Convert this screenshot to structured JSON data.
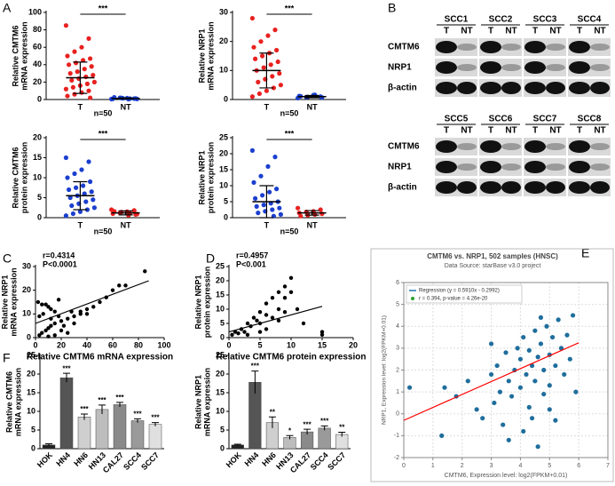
{
  "panel_labels": [
    "A",
    "B",
    "C",
    "D",
    "E",
    "F"
  ],
  "blot": {
    "groups": [
      [
        "SCC1",
        "SCC2",
        "SCC3",
        "SCC4"
      ],
      [
        "SCC5",
        "SCC6",
        "SCC7",
        "SCC8"
      ]
    ],
    "lanes": [
      "T",
      "NT"
    ],
    "rows": [
      "CMTM6",
      "NRP1",
      "β-actin"
    ]
  },
  "chart_data": [
    {
      "type": "dot",
      "ylabel": [
        "Relative CMTM6",
        "mRNA expression"
      ],
      "ylim": [
        0,
        100
      ],
      "yticks": [
        0,
        20,
        40,
        60,
        80,
        100
      ],
      "significance": "***",
      "note": "n=50",
      "series": [
        {
          "name": "T",
          "color": "#e8211f",
          "mean": 25,
          "sd": 18,
          "values": [
            85,
            70,
            60,
            55,
            50,
            47,
            45,
            42,
            40,
            38,
            35,
            32,
            30,
            28,
            26,
            24,
            22,
            20,
            18,
            16,
            14,
            12,
            10,
            8,
            6,
            4,
            2
          ]
        },
        {
          "name": "NT",
          "color": "#1b3fcf",
          "mean": 1.2,
          "sd": 0.6,
          "values": [
            0.5,
            1,
            1.5,
            2,
            0.8,
            1.2,
            0.3,
            1.8,
            2.5,
            0.6,
            1,
            1.4
          ]
        }
      ]
    },
    {
      "type": "dot",
      "ylabel": [
        "Relative NRP1",
        "mRNA expression"
      ],
      "ylim": [
        0,
        30
      ],
      "yticks": [
        0,
        10,
        20,
        30
      ],
      "significance": "***",
      "note": "n=50",
      "series": [
        {
          "name": "T",
          "color": "#e8211f",
          "mean": 10,
          "sd": 6,
          "values": [
            28,
            24,
            22,
            20,
            18,
            17,
            16,
            15,
            14,
            13,
            12,
            11,
            10,
            9,
            8,
            7,
            6,
            5,
            4,
            3,
            2,
            1
          ]
        },
        {
          "name": "NT",
          "color": "#1b3fcf",
          "mean": 1,
          "sd": 0.4,
          "values": [
            0.5,
            1,
            1.5,
            0.8,
            1.2,
            0.7,
            1.6,
            0.9,
            1.1
          ]
        }
      ]
    },
    {
      "type": "dot",
      "ylabel": [
        "Relative CMTM6",
        "protein expression"
      ],
      "ylim": [
        0,
        20
      ],
      "yticks": [
        0,
        5,
        10,
        15,
        20
      ],
      "significance": "***",
      "note": "n=50",
      "series": [
        {
          "name": "T",
          "color": "#1b3fcf",
          "mean": 5.5,
          "sd": 3.5,
          "values": [
            15,
            14,
            12,
            11,
            10,
            9,
            8,
            7.5,
            7,
            6.5,
            6,
            5.5,
            5,
            4.5,
            4,
            3.5,
            3,
            2.5,
            2,
            1.5,
            1,
            0.5
          ]
        },
        {
          "name": "NT",
          "color": "#e8211f",
          "mean": 1.2,
          "sd": 0.5,
          "values": [
            2,
            1.8,
            1.5,
            1.2,
            1,
            0.8,
            0.6,
            1.4,
            1.6,
            0.9,
            1.1
          ]
        }
      ]
    },
    {
      "type": "dot",
      "ylabel": [
        "Relative NRP1",
        "protein expression"
      ],
      "ylim": [
        0,
        25
      ],
      "yticks": [
        0,
        5,
        10,
        15,
        20,
        25
      ],
      "significance": "***",
      "note": "n=50",
      "series": [
        {
          "name": "T",
          "color": "#1b3fcf",
          "mean": 5,
          "sd": 5,
          "values": [
            21,
            19,
            16,
            13,
            11,
            9,
            8,
            7,
            6,
            5,
            4.5,
            4,
            3.5,
            3,
            2.5,
            2,
            1.5,
            1,
            0.5
          ]
        },
        {
          "name": "NT",
          "color": "#e8211f",
          "mean": 1.5,
          "sd": 0.7,
          "values": [
            3,
            2.5,
            2,
            1.8,
            1.5,
            1.2,
            1,
            0.8,
            0.5
          ]
        }
      ]
    },
    {
      "type": "scatter",
      "xlabel": "Relative CMTM6 mRNA expression",
      "ylabel": [
        "Relative NRP1",
        "mRNA expression"
      ],
      "annotations": [
        "r=0.4314",
        "P<0.0001"
      ],
      "xlim": [
        0,
        100
      ],
      "xticks": [
        0,
        20,
        40,
        60,
        80,
        100
      ],
      "ylim": [
        0,
        30
      ],
      "yticks": [
        0,
        10,
        20,
        30
      ],
      "color": "#000000",
      "x": [
        85,
        70,
        65,
        55,
        50,
        45,
        40,
        35,
        30,
        25,
        20,
        15,
        12,
        10,
        8,
        5,
        3,
        2,
        5,
        8,
        10,
        12,
        15,
        18,
        20,
        22,
        25,
        30,
        15,
        12,
        6,
        3,
        18,
        10,
        40,
        35,
        28,
        60
      ],
      "y": [
        28,
        22,
        22,
        17,
        15,
        13,
        12,
        10,
        9,
        8,
        7,
        6,
        5,
        4,
        3,
        2,
        1,
        15,
        14,
        14,
        13,
        12,
        11,
        9,
        3,
        5,
        2,
        6,
        1,
        8,
        10,
        9,
        16,
        0.5,
        10,
        11,
        11,
        20
      ],
      "trendline": {
        "x": [
          0,
          88
        ],
        "y": [
          6,
          24
        ]
      }
    },
    {
      "type": "scatter",
      "xlabel": "Relative CMTM6 protein expression",
      "ylabel": [
        "Relative NRP1",
        "protein expression"
      ],
      "annotations": [
        "r=0.4957",
        "P<0.001"
      ],
      "xlim": [
        0,
        20
      ],
      "xticks": [
        0,
        5,
        10,
        15,
        20
      ],
      "ylim": [
        0,
        25
      ],
      "yticks": [
        0,
        5,
        10,
        15,
        20,
        25
      ],
      "color": "#000000",
      "x": [
        10,
        9,
        8,
        7,
        6,
        10,
        9,
        5,
        4,
        3,
        2,
        1,
        0.5,
        1.5,
        2.5,
        3.5,
        4.5,
        5,
        6,
        7,
        8,
        11,
        12,
        15,
        15,
        5,
        3,
        6,
        8,
        9
      ],
      "y": [
        21,
        18,
        16,
        14,
        12,
        16,
        14,
        9,
        7,
        5,
        3,
        2,
        1,
        1.5,
        2,
        4,
        6,
        5,
        8,
        7,
        10,
        10,
        5,
        2,
        1,
        2,
        1,
        3,
        6,
        9
      ],
      "trendline": {
        "x": [
          0,
          15
        ],
        "y": [
          2,
          11
        ]
      }
    },
    {
      "type": "scatter",
      "title": "CMTM6 vs. NRP1, 502 samples (HNSC)",
      "subtitle": "Data Source: starBase v3.0 project",
      "xlabel": "CMTM6, Expression level: log2(FPKM+0.01)",
      "ylabel": [
        "NRP1, Expression level: log2(FPKM+0.01)"
      ],
      "grid": true,
      "legend": [
        {
          "label": "Regression (y = 0.5910x - 0.2992)",
          "color": "#1f77b4"
        },
        {
          "label": "r = 0.394, p-value = 4.26e-20",
          "color": "#2ca02c"
        }
      ],
      "xlim": [
        0,
        7
      ],
      "xticks": [
        0,
        1,
        2,
        3,
        4,
        5,
        6,
        7
      ],
      "ylim": [
        -2,
        6
      ],
      "yticks": [
        -2,
        -1,
        0,
        1,
        2,
        3,
        4,
        5,
        6
      ],
      "color": "#1f6e9c",
      "x": [
        0.2,
        1.4,
        1.3,
        1.8,
        2.2,
        2.5,
        2.7,
        3,
        3.1,
        3.2,
        3.3,
        3.4,
        3.5,
        3.6,
        3.7,
        3.8,
        3.9,
        4,
        4,
        4.1,
        4.1,
        4.2,
        4.3,
        4.3,
        4.4,
        4.5,
        4.5,
        4.6,
        4.6,
        4.7,
        4.8,
        4.8,
        4.9,
        5,
        5,
        5.1,
        5.2,
        5.2,
        5.3,
        5.4,
        5.5,
        5.6,
        5.7,
        5.8,
        5.9,
        3.6,
        4.4,
        5,
        3,
        4.7
      ],
      "y": [
        1.2,
        1.2,
        -1,
        0.8,
        1.5,
        0.2,
        -0.2,
        1.8,
        0.5,
        2.2,
        1,
        -0.5,
        2.8,
        1.5,
        0.8,
        2,
        3,
        1.2,
        2.5,
        -0.8,
        3.5,
        1.8,
        2.9,
        0.3,
        2.2,
        3.8,
        1.5,
        2.6,
        -1.5,
        3.2,
        2,
        0.9,
        4,
        2.7,
        1.3,
        3.5,
        2.2,
        -0.3,
        4.3,
        3,
        1.8,
        3.6,
        2.5,
        4.5,
        1,
        -1.2,
        -0.2,
        0.2,
        3.2,
        4.4
      ],
      "trendline": {
        "x": [
          0,
          6
        ],
        "y": [
          -0.2992,
          3.2468
        ],
        "color": "#ff0000"
      }
    },
    {
      "type": "bar",
      "ylabel": [
        "Relative CMTM6",
        "mRNA expression"
      ],
      "ylim": [
        0,
        25
      ],
      "yticks": [
        0,
        5,
        10,
        15,
        20,
        25
      ],
      "categories": [
        "HOK",
        "HN4",
        "HN6",
        "HN13",
        "CAL27",
        "SCC4",
        "SCC7"
      ],
      "values": [
        1,
        19,
        8.5,
        10.5,
        11.8,
        7.5,
        6.5
      ],
      "errors": [
        0.3,
        1.2,
        0.8,
        1.2,
        0.6,
        0.5,
        0.5
      ],
      "labels": [
        null,
        "***",
        "***",
        "***",
        "***",
        "***",
        "***"
      ],
      "colors": [
        "#222222",
        "#555555",
        "#cfcfcf",
        "#bdbdbd",
        "#8a8a8a",
        "#9a9a9a",
        "#e0e0e0"
      ]
    },
    {
      "type": "bar",
      "ylabel": [
        "Relative NRP1",
        "mRNA expression"
      ],
      "ylim": [
        0,
        25
      ],
      "yticks": [
        0,
        5,
        10,
        15,
        20,
        25
      ],
      "categories": [
        "HOK",
        "HN4",
        "HN6",
        "HN13",
        "CAL27",
        "SCC4",
        "SCC7"
      ],
      "values": [
        1,
        17.8,
        7,
        3,
        4.5,
        5.5,
        3.8
      ],
      "errors": [
        0.2,
        3,
        1.5,
        0.5,
        0.7,
        0.6,
        0.6
      ],
      "labels": [
        null,
        "***",
        "**",
        "*",
        "***",
        "***",
        "**"
      ],
      "colors": [
        "#222222",
        "#555555",
        "#cfcfcf",
        "#bdbdbd",
        "#8a8a8a",
        "#9a9a9a",
        "#e0e0e0"
      ]
    }
  ]
}
